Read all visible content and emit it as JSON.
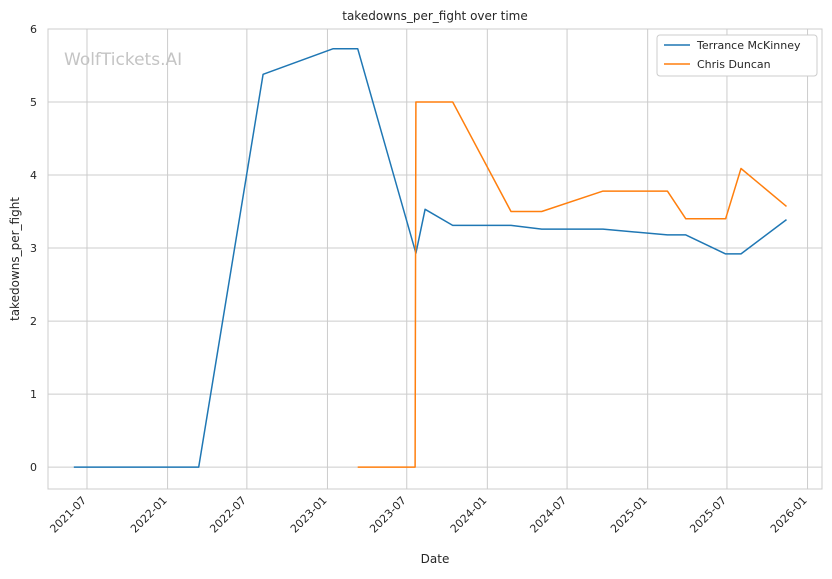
{
  "chart_data": {
    "type": "line",
    "title": "takedowns_per_fight over time",
    "xlabel": "Date",
    "ylabel": "takedowns_per_fight",
    "watermark": "WolfTickets.AI",
    "x_ticks": [
      "2021-07",
      "2022-01",
      "2022-07",
      "2023-01",
      "2023-07",
      "2024-01",
      "2024-07",
      "2025-01",
      "2025-07",
      "2026-01"
    ],
    "y_ticks": [
      0,
      1,
      2,
      3,
      4,
      5,
      6
    ],
    "xlim": [
      "2021-04-03",
      "2026-02-03"
    ],
    "ylim": [
      -0.3,
      6.0
    ],
    "grid": true,
    "legend_position": "top-right",
    "series": [
      {
        "name": "Terrance McKinney",
        "color": "#1f77b4",
        "points": [
          [
            "2021-06-01",
            0.0
          ],
          [
            "2022-03-13",
            0.0
          ],
          [
            "2022-08-07",
            5.38
          ],
          [
            "2023-01-14",
            5.73
          ],
          [
            "2023-03-11",
            5.73
          ],
          [
            "2023-07-22",
            2.93
          ],
          [
            "2023-08-12",
            3.53
          ],
          [
            "2023-10-14",
            3.31
          ],
          [
            "2024-02-24",
            3.31
          ],
          [
            "2024-05-04",
            3.26
          ],
          [
            "2024-09-21",
            3.26
          ],
          [
            "2025-02-15",
            3.18
          ],
          [
            "2025-03-29",
            3.18
          ],
          [
            "2025-06-28",
            2.92
          ],
          [
            "2025-08-02",
            2.92
          ],
          [
            "2025-11-14",
            3.39
          ]
        ]
      },
      {
        "name": "Chris Duncan",
        "color": "#ff7f0e",
        "points": [
          [
            "2023-03-11",
            0.0
          ],
          [
            "2023-07-20",
            0.0
          ],
          [
            "2023-07-22",
            5.0
          ],
          [
            "2023-10-14",
            5.0
          ],
          [
            "2024-02-24",
            3.5
          ],
          [
            "2024-05-04",
            3.5
          ],
          [
            "2024-09-21",
            3.78
          ],
          [
            "2025-02-15",
            3.78
          ],
          [
            "2025-03-29",
            3.4
          ],
          [
            "2025-06-28",
            3.4
          ],
          [
            "2025-08-02",
            4.09
          ],
          [
            "2025-11-14",
            3.57
          ]
        ]
      }
    ]
  }
}
